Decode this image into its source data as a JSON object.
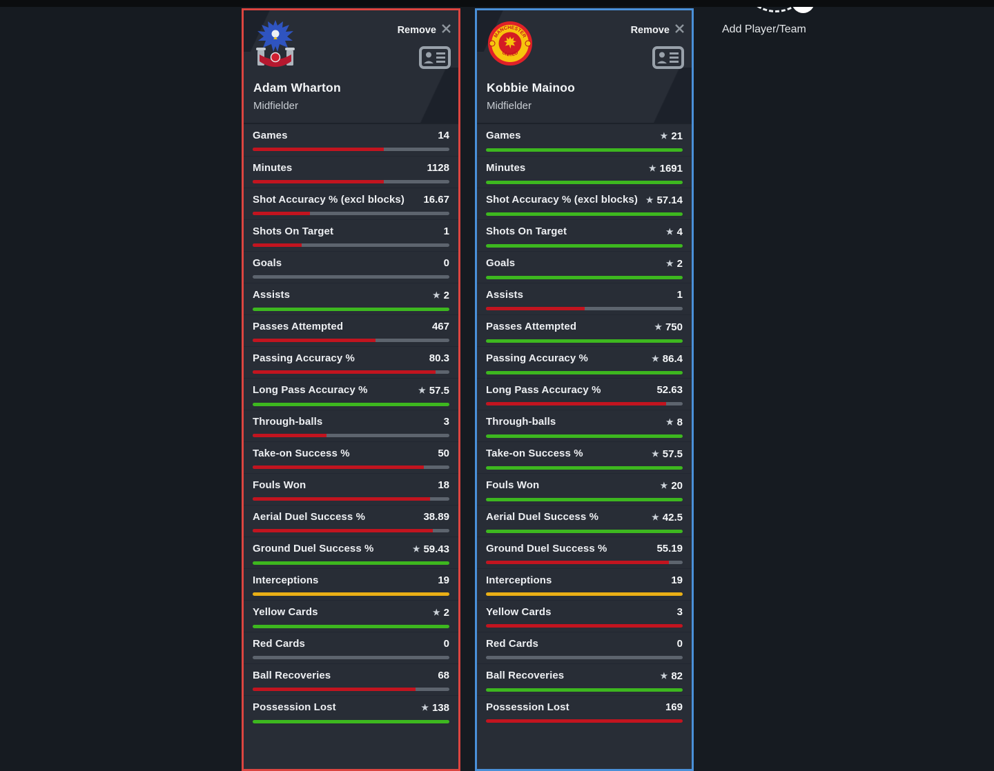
{
  "ui": {
    "remove_label": "Remove",
    "add_player_label": "Add Player/Team"
  },
  "colors": {
    "bar_red": "#c2141f",
    "bar_green": "#3db71f",
    "bar_yellow": "#e9af16",
    "bar_none": "transparent",
    "bar_track": "#5d646e",
    "card_red_border": "#dc4540",
    "card_blue_border": "#4a90d8"
  },
  "players": [
    {
      "name": "Adam Wharton",
      "position": "Midfielder",
      "club": "Crystal Palace",
      "accent": "#dc4540",
      "stats": [
        {
          "label": "Games",
          "value": "14",
          "star": false,
          "color": "red",
          "pct": 66.7
        },
        {
          "label": "Minutes",
          "value": "1128",
          "star": false,
          "color": "red",
          "pct": 66.7
        },
        {
          "label": "Shot Accuracy % (excl blocks)",
          "value": "16.67",
          "star": false,
          "color": "red",
          "pct": 29.2
        },
        {
          "label": "Shots On Target",
          "value": "1",
          "star": false,
          "color": "red",
          "pct": 25
        },
        {
          "label": "Goals",
          "value": "0",
          "star": false,
          "color": "none",
          "pct": 0
        },
        {
          "label": "Assists",
          "value": "2",
          "star": true,
          "color": "green",
          "pct": 100
        },
        {
          "label": "Passes Attempted",
          "value": "467",
          "star": false,
          "color": "red",
          "pct": 62.3
        },
        {
          "label": "Passing Accuracy %",
          "value": "80.3",
          "star": false,
          "color": "red",
          "pct": 92.9
        },
        {
          "label": "Long Pass Accuracy %",
          "value": "57.5",
          "star": true,
          "color": "green",
          "pct": 100
        },
        {
          "label": "Through-balls",
          "value": "3",
          "star": false,
          "color": "red",
          "pct": 37.5
        },
        {
          "label": "Take-on Success %",
          "value": "50",
          "star": false,
          "color": "red",
          "pct": 87
        },
        {
          "label": "Fouls Won",
          "value": "18",
          "star": false,
          "color": "red",
          "pct": 90
        },
        {
          "label": "Aerial Duel Success %",
          "value": "38.89",
          "star": false,
          "color": "red",
          "pct": 91.5
        },
        {
          "label": "Ground Duel Success %",
          "value": "59.43",
          "star": true,
          "color": "green",
          "pct": 100
        },
        {
          "label": "Interceptions",
          "value": "19",
          "star": false,
          "color": "yellow",
          "pct": 100
        },
        {
          "label": "Yellow Cards",
          "value": "2",
          "star": true,
          "color": "green",
          "pct": 100
        },
        {
          "label": "Red Cards",
          "value": "0",
          "star": false,
          "color": "none",
          "pct": 0
        },
        {
          "label": "Ball Recoveries",
          "value": "68",
          "star": false,
          "color": "red",
          "pct": 82.9
        },
        {
          "label": "Possession Lost",
          "value": "138",
          "star": true,
          "color": "green",
          "pct": 100
        }
      ]
    },
    {
      "name": "Kobbie Mainoo",
      "position": "Midfielder",
      "club": "Manchester United",
      "accent": "#4a90d8",
      "stats": [
        {
          "label": "Games",
          "value": "21",
          "star": true,
          "color": "green",
          "pct": 100
        },
        {
          "label": "Minutes",
          "value": "1691",
          "star": true,
          "color": "green",
          "pct": 100
        },
        {
          "label": "Shot Accuracy % (excl blocks)",
          "value": "57.14",
          "star": true,
          "color": "green",
          "pct": 100
        },
        {
          "label": "Shots On Target",
          "value": "4",
          "star": true,
          "color": "green",
          "pct": 100
        },
        {
          "label": "Goals",
          "value": "2",
          "star": true,
          "color": "green",
          "pct": 100
        },
        {
          "label": "Assists",
          "value": "1",
          "star": false,
          "color": "red",
          "pct": 50
        },
        {
          "label": "Passes Attempted",
          "value": "750",
          "star": true,
          "color": "green",
          "pct": 100
        },
        {
          "label": "Passing Accuracy %",
          "value": "86.4",
          "star": true,
          "color": "green",
          "pct": 100
        },
        {
          "label": "Long Pass Accuracy %",
          "value": "52.63",
          "star": false,
          "color": "red",
          "pct": 91.5
        },
        {
          "label": "Through-balls",
          "value": "8",
          "star": true,
          "color": "green",
          "pct": 100
        },
        {
          "label": "Take-on Success %",
          "value": "57.5",
          "star": true,
          "color": "green",
          "pct": 100
        },
        {
          "label": "Fouls Won",
          "value": "20",
          "star": true,
          "color": "green",
          "pct": 100
        },
        {
          "label": "Aerial Duel Success %",
          "value": "42.5",
          "star": true,
          "color": "green",
          "pct": 100
        },
        {
          "label": "Ground Duel Success %",
          "value": "55.19",
          "star": false,
          "color": "red",
          "pct": 92.9
        },
        {
          "label": "Interceptions",
          "value": "19",
          "star": false,
          "color": "yellow",
          "pct": 100
        },
        {
          "label": "Yellow Cards",
          "value": "3",
          "star": false,
          "color": "red",
          "pct": 100
        },
        {
          "label": "Red Cards",
          "value": "0",
          "star": false,
          "color": "none",
          "pct": 0
        },
        {
          "label": "Ball Recoveries",
          "value": "82",
          "star": true,
          "color": "green",
          "pct": 100
        },
        {
          "label": "Possession Lost",
          "value": "169",
          "star": false,
          "color": "red",
          "pct": 100
        }
      ]
    }
  ]
}
